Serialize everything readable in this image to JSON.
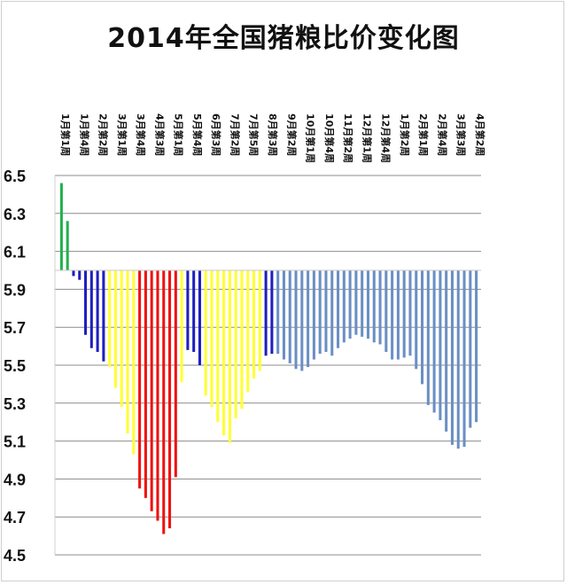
{
  "chart_data": {
    "type": "bar",
    "title": "2014年全国猪粮比价变化图",
    "baseline": 6.0,
    "ylim": [
      4.5,
      6.5
    ],
    "yticks": [
      "6.5",
      "6.3",
      "6.1",
      "5.9",
      "5.7",
      "5.5",
      "5.3",
      "5.1",
      "4.9",
      "4.7",
      "4.5"
    ],
    "grid": true,
    "category_labels": [
      "1月第1周",
      "1月第4周",
      "2月第2周",
      "3月第1周",
      "3月第4周",
      "4月第3周",
      "5月第1周",
      "5月第4周",
      "6月第3周",
      "7月第2周",
      "7月第5周",
      "8月第3周",
      "9月第2周",
      "10月第1周",
      "10月第4周",
      "11月第2周",
      "12月第1周",
      "12月第4周",
      "1月第2周",
      "2月第1周",
      "2月第4周",
      "3月第3周",
      "4月第2周"
    ],
    "colors": {
      "green": "#22b14c",
      "blue": "#1f1fbf",
      "yellow": "#ffff33",
      "red": "#ee1111",
      "steel": "#6a8fc4"
    },
    "values": [
      6.46,
      6.26,
      5.97,
      5.95,
      5.66,
      5.59,
      5.57,
      5.52,
      5.49,
      5.38,
      5.28,
      5.14,
      5.03,
      4.85,
      4.8,
      4.73,
      4.68,
      4.61,
      4.64,
      4.91,
      5.41,
      5.58,
      5.57,
      5.5,
      5.34,
      5.28,
      5.2,
      5.13,
      5.09,
      5.22,
      5.27,
      5.36,
      5.43,
      5.47,
      5.55,
      5.56,
      5.56,
      5.53,
      5.51,
      5.48,
      5.47,
      5.49,
      5.53,
      5.56,
      5.57,
      5.55,
      5.59,
      5.62,
      5.64,
      5.66,
      5.65,
      5.64,
      5.62,
      5.61,
      5.57,
      5.53,
      5.53,
      5.54,
      5.55,
      5.48,
      5.4,
      5.29,
      5.25,
      5.21,
      5.15,
      5.08,
      5.06,
      5.07,
      5.17,
      5.2
    ],
    "bar_colors": [
      "green",
      "green",
      "blue",
      "blue",
      "blue",
      "blue",
      "blue",
      "blue",
      "yellow",
      "yellow",
      "yellow",
      "yellow",
      "yellow",
      "red",
      "red",
      "red",
      "red",
      "red",
      "red",
      "red",
      "yellow",
      "blue",
      "blue",
      "blue",
      "yellow",
      "yellow",
      "yellow",
      "yellow",
      "yellow",
      "yellow",
      "yellow",
      "yellow",
      "yellow",
      "yellow",
      "blue",
      "blue",
      "steel",
      "steel",
      "steel",
      "steel",
      "steel",
      "steel",
      "steel",
      "steel",
      "steel",
      "steel",
      "steel",
      "steel",
      "steel",
      "steel",
      "steel",
      "steel",
      "steel",
      "steel",
      "steel",
      "steel",
      "steel",
      "steel",
      "steel",
      "steel",
      "steel",
      "steel",
      "steel",
      "steel",
      "steel",
      "steel",
      "steel",
      "steel",
      "steel",
      "steel"
    ]
  }
}
